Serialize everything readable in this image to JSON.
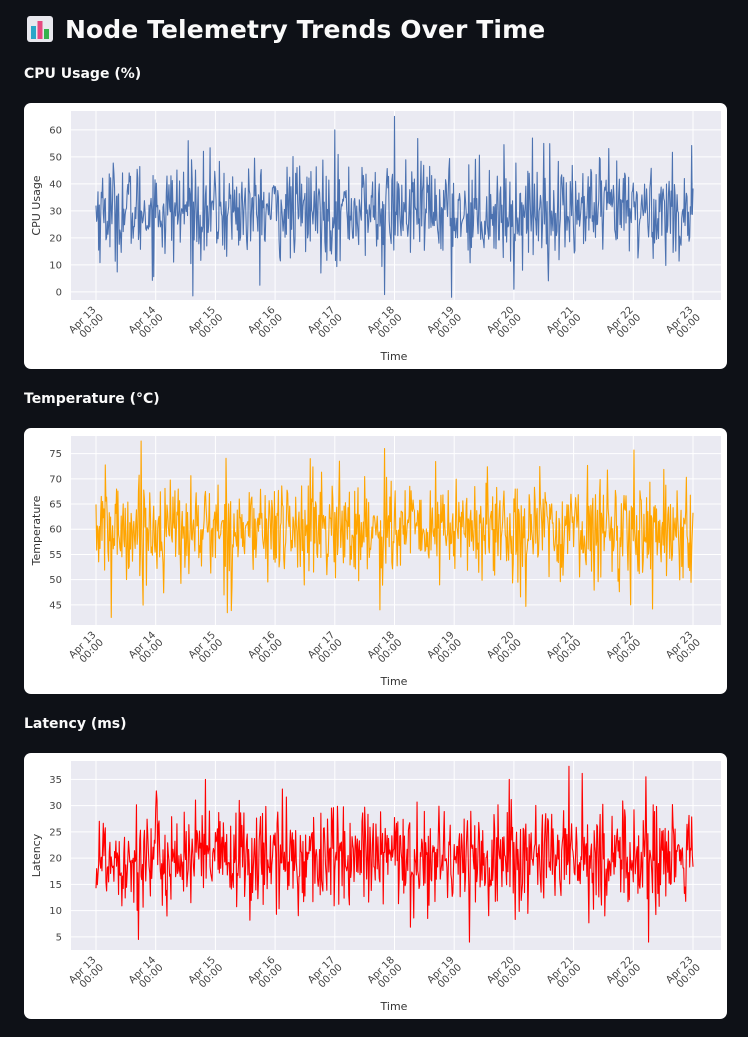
{
  "header": {
    "title": "Node Telemetry Trends Over Time",
    "icon": "bar-chart-icon"
  },
  "colors": {
    "background": "#0e1117",
    "plot_bg": "#eaeaf2",
    "cpu": "#4c72b0",
    "temperature": "#ffa500",
    "latency": "#ff0000"
  },
  "sections": [
    {
      "label": "CPU Usage (%)"
    },
    {
      "label": "Temperature (°C)"
    },
    {
      "label": "Latency (ms)"
    }
  ],
  "chart_data": [
    {
      "type": "line",
      "title": "",
      "xlabel": "Time",
      "ylabel": "CPU Usage",
      "x_range": [
        "2024-04-13T00:00",
        "2024-04-23T00:00"
      ],
      "x_ticks": [
        "Apr 13\n00:00",
        "Apr 14\n00:00",
        "Apr 15\n00:00",
        "Apr 16\n00:00",
        "Apr 17\n00:00",
        "Apr 18\n00:00",
        "Apr 19\n00:00",
        "Apr 20\n00:00",
        "Apr 21\n00:00",
        "Apr 22\n00:00",
        "Apr 23\n00:00"
      ],
      "y_ticks": [
        0,
        10,
        20,
        30,
        40,
        50,
        60
      ],
      "ylim": [
        -3,
        67
      ],
      "grid": true,
      "series": [
        {
          "color": "#4c72b0",
          "mean": 30,
          "std": 9,
          "min": -2,
          "max": 65,
          "notable_points": [
            {
              "x": "2024-04-18T00:00",
              "y": 65
            },
            {
              "x": "2024-04-18T23:00",
              "y": -2
            },
            {
              "x": "2024-04-17T20:00",
              "y": -1
            },
            {
              "x": "2024-04-20T00:00",
              "y": 1
            },
            {
              "x": "2024-04-14T13:00",
              "y": 56
            },
            {
              "x": "2024-04-17T00:00",
              "y": 60
            },
            {
              "x": "2024-04-20T12:00",
              "y": 55
            }
          ]
        }
      ]
    },
    {
      "type": "line",
      "title": "",
      "xlabel": "Time",
      "ylabel": "Temperature",
      "x_range": [
        "2024-04-13T00:00",
        "2024-04-23T00:00"
      ],
      "x_ticks": [
        "Apr 13\n00:00",
        "Apr 14\n00:00",
        "Apr 15\n00:00",
        "Apr 16\n00:00",
        "Apr 17\n00:00",
        "Apr 18\n00:00",
        "Apr 19\n00:00",
        "Apr 20\n00:00",
        "Apr 21\n00:00",
        "Apr 22\n00:00",
        "Apr 23\n00:00"
      ],
      "y_ticks": [
        45,
        50,
        55,
        60,
        65,
        70,
        75
      ],
      "ylim": [
        41,
        78.5
      ],
      "grid": true,
      "series": [
        {
          "color": "#ffa500",
          "mean": 60,
          "std": 5,
          "min": 42.5,
          "max": 77.5,
          "notable_points": [
            {
              "x": "2024-04-13T18:00",
              "y": 77.5
            },
            {
              "x": "2024-04-13T06:00",
              "y": 42.5
            },
            {
              "x": "2024-04-17T18:00",
              "y": 44
            },
            {
              "x": "2024-04-17T20:00",
              "y": 76
            },
            {
              "x": "2024-04-21T23:00",
              "y": 45
            },
            {
              "x": "2024-04-16T14:00",
              "y": 74
            }
          ]
        }
      ]
    },
    {
      "type": "line",
      "title": "",
      "xlabel": "Time",
      "ylabel": "Latency",
      "x_range": [
        "2024-04-13T00:00",
        "2024-04-23T00:00"
      ],
      "x_ticks": [
        "Apr 13\n00:00",
        "Apr 14\n00:00",
        "Apr 15\n00:00",
        "Apr 16\n00:00",
        "Apr 17\n00:00",
        "Apr 18\n00:00",
        "Apr 19\n00:00",
        "Apr 20\n00:00",
        "Apr 21\n00:00",
        "Apr 22\n00:00",
        "Apr 23\n00:00"
      ],
      "y_ticks": [
        5,
        10,
        15,
        20,
        25,
        30,
        35
      ],
      "ylim": [
        2.5,
        38.5
      ],
      "grid": true,
      "series": [
        {
          "color": "#ff0000",
          "mean": 20,
          "std": 5,
          "min": 4,
          "max": 37.5,
          "notable_points": [
            {
              "x": "2024-04-20T22:00",
              "y": 37.5
            },
            {
              "x": "2024-04-22T06:00",
              "y": 4
            },
            {
              "x": "2024-04-13T17:00",
              "y": 4.5
            },
            {
              "x": "2024-04-22T05:00",
              "y": 35.5
            },
            {
              "x": "2024-04-14T20:00",
              "y": 35
            },
            {
              "x": "2024-04-19T22:00",
              "y": 35
            }
          ]
        }
      ]
    }
  ]
}
